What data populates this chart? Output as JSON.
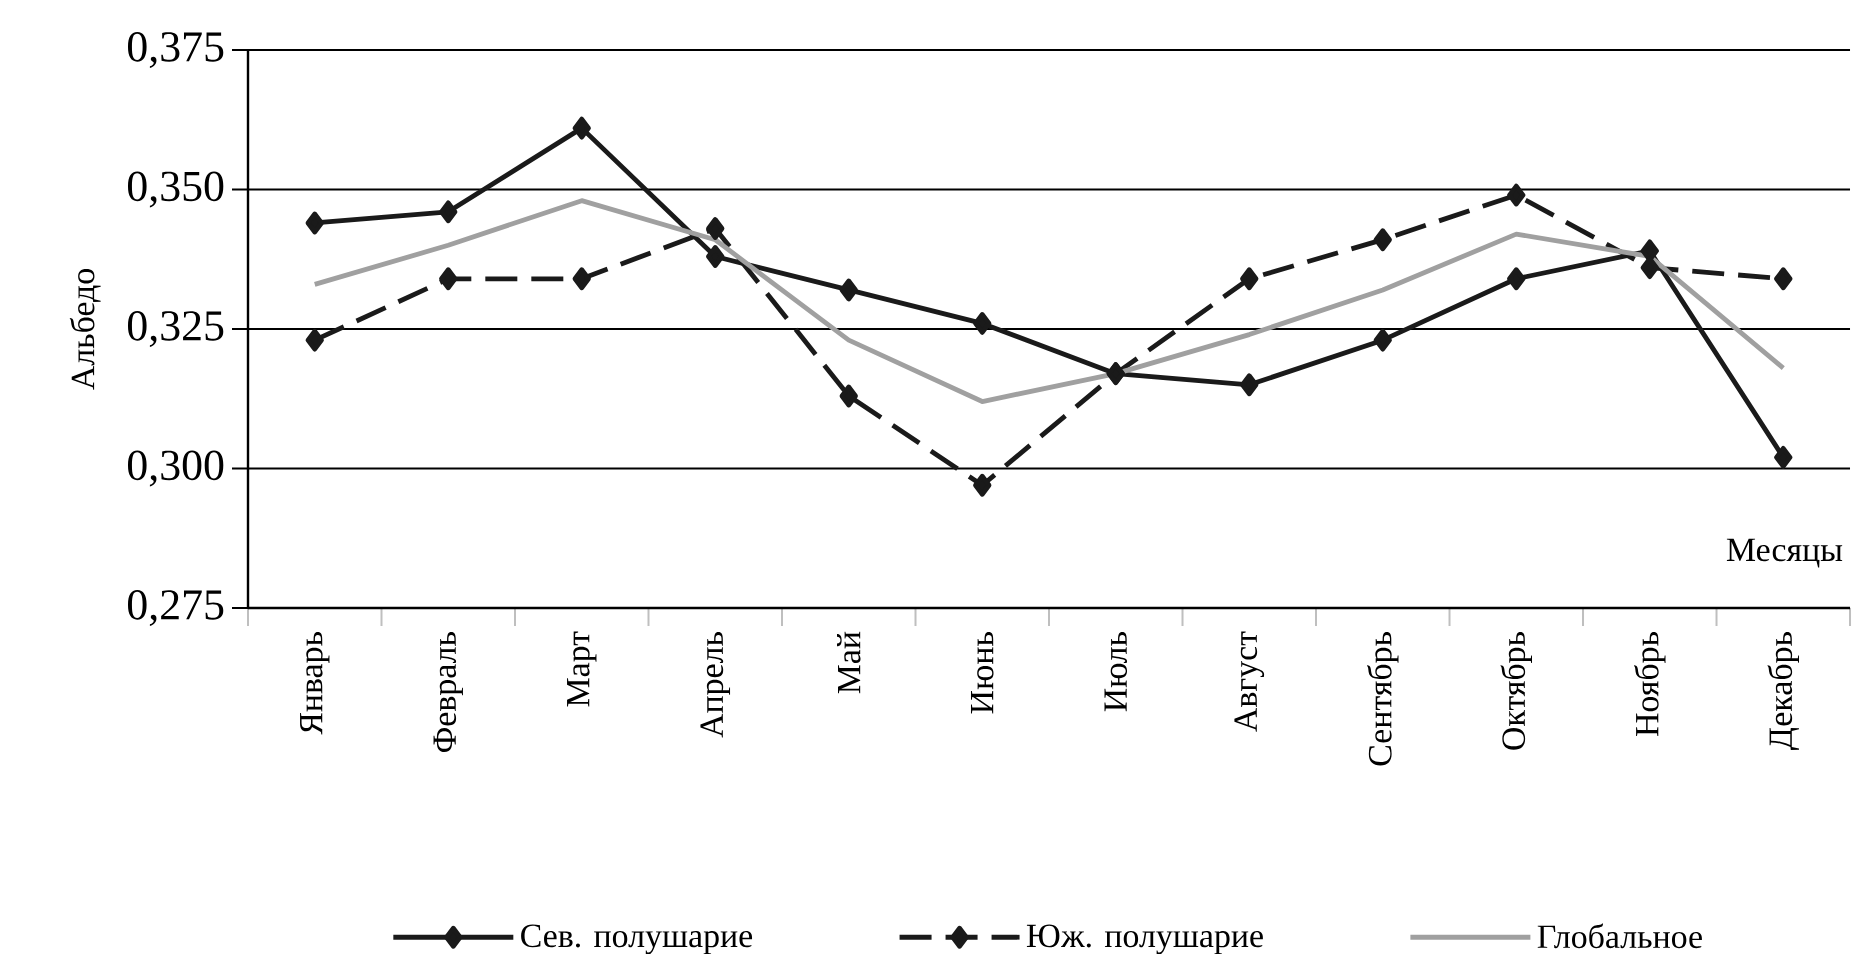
{
  "chart_data": {
    "type": "line",
    "ylabel": "Альбедо",
    "xlabel": "Месяцы",
    "categories": [
      "Январь",
      "Февраль",
      "Март",
      "Апрель",
      "Май",
      "Июнь",
      "Июль",
      "Август",
      "Сентябрь",
      "Октябрь",
      "Ноябрь",
      "Декабрь"
    ],
    "ylim": [
      0.275,
      0.375
    ],
    "yticks": [
      {
        "value": 0.275,
        "label": "0,275"
      },
      {
        "value": 0.3,
        "label": "0,300"
      },
      {
        "value": 0.325,
        "label": "0,325"
      },
      {
        "value": 0.35,
        "label": "0,350"
      },
      {
        "value": 0.375,
        "label": "0,375"
      }
    ],
    "grid": "y",
    "legend": "bottom",
    "series": [
      {
        "name": "Сев. полушарие",
        "color": "#1a1a1a",
        "marker": "diamond",
        "line_style": "solid",
        "values": [
          0.344,
          0.346,
          0.361,
          0.338,
          0.332,
          0.326,
          0.317,
          0.315,
          0.323,
          0.334,
          0.339,
          0.302
        ]
      },
      {
        "name": "Юж. полушарие",
        "color": "#1a1a1a",
        "marker": "diamond",
        "line_style": "dashed",
        "values": [
          0.323,
          0.334,
          0.334,
          0.343,
          0.313,
          0.297,
          0.317,
          0.334,
          0.341,
          0.349,
          0.336,
          0.334
        ]
      },
      {
        "name": "Глобальное",
        "color": "#a0a0a0",
        "marker": "none",
        "line_style": "solid",
        "values": [
          0.333,
          0.34,
          0.348,
          0.341,
          0.323,
          0.312,
          0.317,
          0.324,
          0.332,
          0.342,
          0.338,
          0.318
        ]
      }
    ]
  }
}
